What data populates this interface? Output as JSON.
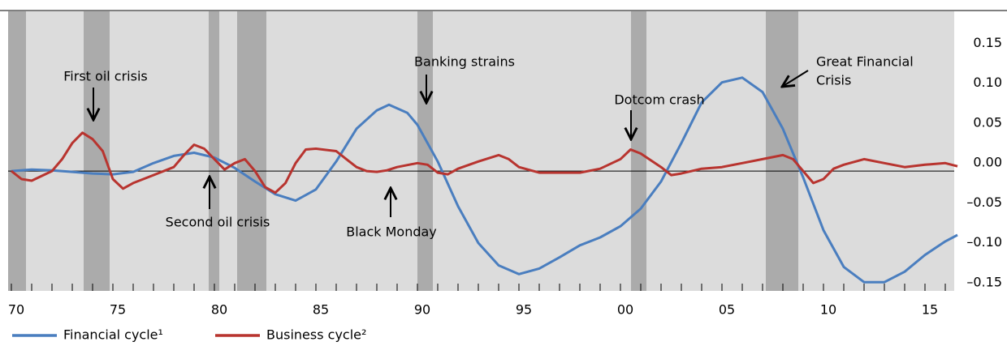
{
  "chart_data": {
    "type": "line",
    "xlim": [
      1969.84,
      2016.44
    ],
    "ylim": [
      -0.15,
      0.2
    ],
    "xticks": [
      {
        "value": 1970,
        "label": "70"
      },
      {
        "value": 1975,
        "label": "75"
      },
      {
        "value": 1980,
        "label": "80"
      },
      {
        "value": 1985,
        "label": "85"
      },
      {
        "value": 1990,
        "label": "90"
      },
      {
        "value": 1995,
        "label": "95"
      },
      {
        "value": 2000,
        "label": "00"
      },
      {
        "value": 2005,
        "label": "05"
      },
      {
        "value": 2010,
        "label": "10"
      },
      {
        "value": 2015,
        "label": "15"
      }
    ],
    "xminorticks": [
      1970,
      1971,
      1972,
      1973,
      1974,
      1975,
      1976,
      1977,
      1978,
      1979,
      1980,
      1981,
      1982,
      1983,
      1984,
      1985,
      1986,
      1987,
      1988,
      1989,
      1990,
      1991,
      1992,
      1993,
      1994,
      1995,
      1996,
      1997,
      1998,
      1999,
      2000,
      2001,
      2002,
      2003,
      2004,
      2005,
      2006,
      2007,
      2008,
      2009,
      2010,
      2011,
      2012,
      2013,
      2014,
      2015,
      2016
    ],
    "yticks": [
      0.15,
      {
        "value": 0.1,
        "label": "0.10"
      },
      0.05,
      {
        "value": 0,
        "label": "0.00"
      },
      {
        "value": -0.05,
        "label": "–0.05"
      },
      {
        "value": -0.1,
        "label": "–0.10"
      },
      {
        "value": -0.15,
        "label": "–0.15"
      }
    ],
    "shaded_periods": [
      [
        1969.84,
        1970.72
      ],
      [
        1973.56,
        1974.84
      ],
      [
        1979.72,
        1980.24
      ],
      [
        1981.12,
        1982.56
      ],
      [
        1990.0,
        1990.76
      ],
      [
        2000.52,
        2001.28
      ],
      [
        2007.16,
        2008.76
      ]
    ],
    "series": [
      {
        "name": "Financial cycle¹",
        "color": "#4a7ebf",
        "x": [
          1970,
          1971,
          1972,
          1973,
          1974,
          1975,
          1976,
          1977,
          1978,
          1979,
          1980,
          1981,
          1982,
          1983,
          1984,
          1985,
          1986,
          1987,
          1988,
          1988.6,
          1989.5,
          1990,
          1991,
          1992,
          1993,
          1994,
          1995,
          1996,
          1997,
          1998,
          1999,
          2000,
          2001,
          2002,
          2003,
          2004,
          2005,
          2006,
          2007,
          2008,
          2009,
          2010,
          2011,
          2012,
          2013,
          2014,
          2015,
          2016,
          2016.6
        ],
        "values": [
          0.0,
          0.002,
          0.001,
          -0.001,
          -0.003,
          -0.004,
          -0.001,
          0.01,
          0.019,
          0.023,
          0.017,
          0.004,
          -0.013,
          -0.029,
          -0.037,
          -0.023,
          0.012,
          0.053,
          0.076,
          0.083,
          0.073,
          0.058,
          0.012,
          -0.044,
          -0.09,
          -0.118,
          -0.129,
          -0.122,
          -0.108,
          -0.093,
          -0.083,
          -0.069,
          -0.047,
          -0.013,
          0.035,
          0.086,
          0.111,
          0.117,
          0.099,
          0.053,
          -0.008,
          -0.074,
          -0.12,
          -0.139,
          -0.139,
          -0.126,
          -0.105,
          -0.088,
          -0.08
        ]
      },
      {
        "name": "Business cycle²",
        "color": "#b8342f",
        "x": [
          1970,
          1970.5,
          1971,
          1972,
          1972.5,
          1973,
          1973.5,
          1974,
          1974.5,
          1975,
          1975.5,
          1976,
          1977,
          1978,
          1978.5,
          1979,
          1979.5,
          1980,
          1980.5,
          1981,
          1981.5,
          1982,
          1982.5,
          1983,
          1983.5,
          1984,
          1984.5,
          1985,
          1986,
          1986.5,
          1987,
          1987.5,
          1988,
          1988.5,
          1989,
          1990,
          1990.5,
          1991,
          1991.5,
          1992,
          1993,
          1994,
          1994.5,
          1995,
          1996,
          1997,
          1998,
          1999,
          2000,
          2000.5,
          2001,
          2002,
          2002.5,
          2003,
          2004,
          2005,
          2006,
          2007,
          2008,
          2008.5,
          2009,
          2009.5,
          2010,
          2010.5,
          2011,
          2012,
          2013,
          2014,
          2015,
          2016,
          2016.6
        ],
        "values": [
          0.0,
          -0.01,
          -0.012,
          0.0,
          0.015,
          0.035,
          0.048,
          0.04,
          0.025,
          -0.01,
          -0.022,
          -0.015,
          -0.005,
          0.005,
          0.02,
          0.033,
          0.028,
          0.015,
          0.002,
          0.01,
          0.015,
          0.0,
          -0.02,
          -0.027,
          -0.015,
          0.01,
          0.027,
          0.028,
          0.025,
          0.015,
          0.005,
          0.0,
          -0.001,
          0.001,
          0.005,
          0.01,
          0.008,
          -0.002,
          -0.004,
          0.003,
          0.012,
          0.02,
          0.015,
          0.005,
          -0.002,
          -0.002,
          -0.002,
          0.003,
          0.015,
          0.027,
          0.022,
          0.005,
          -0.005,
          -0.003,
          0.003,
          0.005,
          0.01,
          0.015,
          0.02,
          0.015,
          0.0,
          -0.015,
          -0.01,
          0.003,
          0.008,
          0.015,
          0.01,
          0.005,
          0.008,
          0.01,
          0.006
        ]
      }
    ],
    "annotations": [
      {
        "lines": [
          "First oil crisis"
        ]
      },
      {
        "lines": [
          "Second oil crisis"
        ]
      },
      {
        "lines": [
          "Banking strains"
        ]
      },
      {
        "lines": [
          "Black Monday"
        ]
      },
      {
        "lines": [
          "Dotcom crash"
        ]
      },
      {
        "lines": [
          "Great Financial",
          "Crisis"
        ]
      }
    ]
  }
}
